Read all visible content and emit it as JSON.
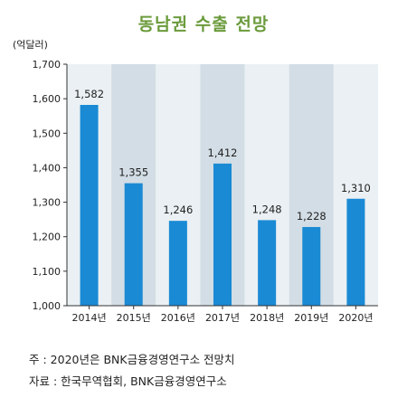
{
  "header": {
    "title": "동남권 수출 전망",
    "unit": "(억달러)"
  },
  "chart_data": {
    "type": "bar",
    "title": "동남권 수출 전망",
    "ylabel": "(억달러)",
    "xlabel": "",
    "categories": [
      "2014년",
      "2015년",
      "2016년",
      "2017년",
      "2018년",
      "2019년",
      "2020년"
    ],
    "values": [
      1582,
      1355,
      1246,
      1412,
      1248,
      1228,
      1310
    ],
    "value_labels": [
      "1,582",
      "1,355",
      "1,246",
      "1,412",
      "1,248",
      "1,228",
      "1,310"
    ],
    "ylim": [
      1000,
      1700
    ],
    "yticks": [
      1000,
      1100,
      1200,
      1300,
      1400,
      1500,
      1600,
      1700
    ],
    "ytick_labels": [
      "1,000",
      "1,100",
      "1,200",
      "1,300",
      "1,400",
      "1,500",
      "1,600",
      "1,700"
    ],
    "grid": false,
    "bar_color": "#1a8ad4",
    "band_color_light": "#eaf0f3",
    "band_color_dark": "#d2dde5"
  },
  "notes": {
    "note": "주 : 2020년은 BNK금융경영연구소 전망치",
    "source": "자료 : 한국무역협회, BNK금융경영연구소"
  }
}
